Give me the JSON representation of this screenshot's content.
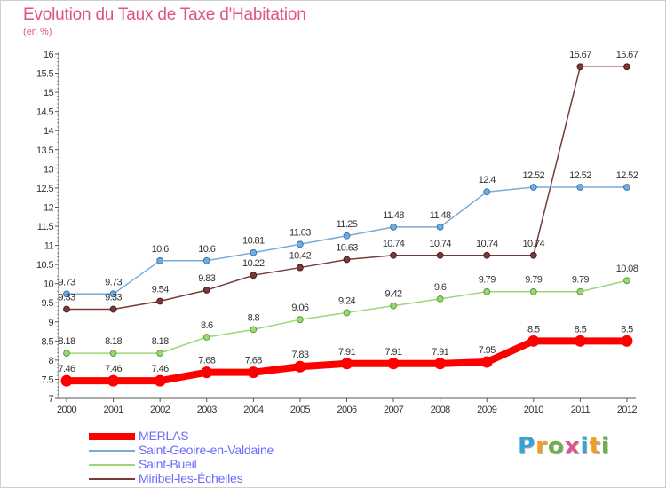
{
  "title": "Evolution du Taux de Taxe d'Habitation",
  "subtitle": "(en %)",
  "logo": {
    "text": "Proxiti",
    "colors": [
      "#3aa0d8",
      "#f0a020",
      "#6ab04c",
      "#e0528a",
      "#3aa0d8",
      "#f0a020",
      "#6ab04c"
    ]
  },
  "chart_data": {
    "type": "line",
    "title": "Evolution du Taux de Taxe d'Habitation",
    "ylabel": "(en %)",
    "xlabel": "",
    "x": [
      "2000",
      "2001",
      "2002",
      "2003",
      "2004",
      "2005",
      "2006",
      "2007",
      "2008",
      "2009",
      "2010",
      "2011",
      "2012"
    ],
    "ylim": [
      7,
      16
    ],
    "yticks": [
      "7",
      "7.5",
      "8",
      "8.5",
      "9",
      "9.5",
      "10",
      "10.5",
      "11",
      "11.5",
      "12",
      "12.5",
      "13",
      "13.5",
      "14",
      "14.5",
      "15",
      "15.5",
      "16"
    ],
    "grid": false,
    "legend_position": "bottom-left",
    "series": [
      {
        "name": "MERLAS",
        "color": "#ff0000",
        "values": [
          7.46,
          7.46,
          7.46,
          7.68,
          7.68,
          7.83,
          7.91,
          7.91,
          7.91,
          7.95,
          8.5,
          8.5,
          8.5
        ],
        "labels": [
          "7.46",
          "7.46",
          "7.46",
          "7.68",
          "7.68",
          "7.83",
          "7.91",
          "7.91",
          "7.91",
          "7.95",
          "8.5",
          "8.5",
          "8.5"
        ]
      },
      {
        "name": "Saint-Geoire-en-Valdaine",
        "color": "#7aaad8",
        "values": [
          9.73,
          9.73,
          10.6,
          10.6,
          10.81,
          11.03,
          11.25,
          11.48,
          11.48,
          12.4,
          12.52,
          12.52,
          12.52
        ],
        "labels": [
          "9.73",
          "9.73",
          "10.6",
          "10.6",
          "10.81",
          "11.03",
          "11.25",
          "11.48",
          "11.48",
          "12.4",
          "12.52",
          "12.52",
          "12.52"
        ]
      },
      {
        "name": "Saint-Bueil",
        "color": "#9cd67a",
        "values": [
          8.18,
          8.18,
          8.18,
          8.6,
          8.8,
          9.06,
          9.24,
          9.42,
          9.6,
          9.79,
          9.79,
          9.79,
          10.08
        ],
        "labels": [
          "8.18",
          "8.18",
          "8.18",
          "8.6",
          "8.8",
          "9.06",
          "9.24",
          "9.42",
          "9.6",
          "9.79",
          "9.79",
          "9.79",
          "10.08"
        ]
      },
      {
        "name": "Miribel-les-Échelles",
        "color": "#7a3a3a",
        "values": [
          9.33,
          9.33,
          9.54,
          9.83,
          10.22,
          10.42,
          10.63,
          10.74,
          10.74,
          10.74,
          10.74,
          15.67,
          15.67
        ],
        "labels": [
          "9.33",
          "9.33",
          "9.54",
          "9.83",
          "10.22",
          "10.42",
          "10.63",
          "10.74",
          "10.74",
          "10.74",
          "10.74",
          "15.67",
          "15.67"
        ]
      }
    ]
  }
}
